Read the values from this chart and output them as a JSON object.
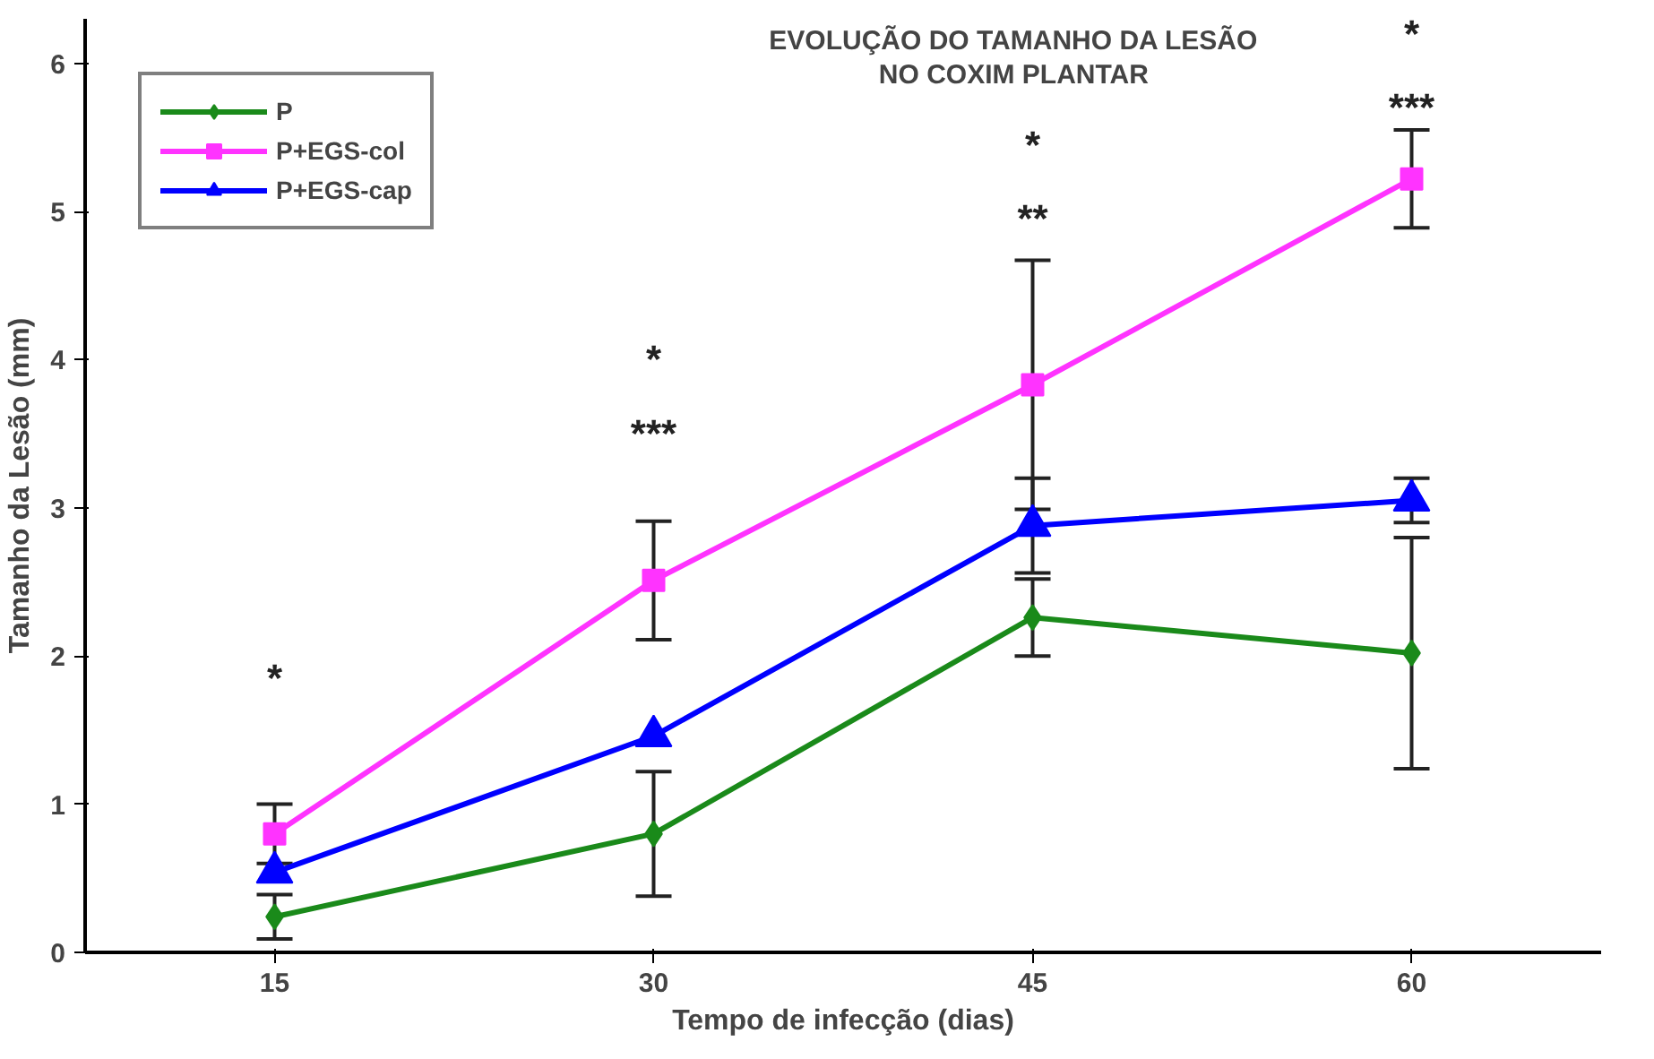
{
  "chart_data": {
    "type": "line",
    "title": "EVOLUÇÃO DO TAMANHO DA LESÃO\nNO COXIM PLANTAR",
    "xlabel": "Tempo de infecção (dias)",
    "ylabel": "Tamanho da Lesão (mm)",
    "categories": [
      "15",
      "30",
      "45",
      "60"
    ],
    "series": [
      {
        "name": "P",
        "color": "#1a8a1a",
        "marker": "diamond",
        "values": [
          0.24,
          0.8,
          2.26,
          2.02
        ],
        "errors": [
          0.15,
          0.42,
          0.26,
          0.78
        ]
      },
      {
        "name": "P+EGS-col",
        "color": "#ff33ff",
        "marker": "square",
        "values": [
          0.8,
          2.51,
          3.83,
          5.22
        ],
        "errors": [
          0.2,
          0.4,
          0.84,
          0.33
        ]
      },
      {
        "name": "P+EGS-cap",
        "color": "#0000ff",
        "marker": "triangle",
        "values": [
          0.54,
          1.46,
          2.88,
          3.05
        ],
        "errors": [
          null,
          null,
          0.32,
          0.15
        ]
      }
    ],
    "ylim": [
      0,
      6.3
    ],
    "yticks": [
      0,
      1,
      2,
      3,
      4,
      5,
      6
    ],
    "annotations": [
      "*",
      "*",
      "***",
      "*",
      "**",
      "*",
      "***"
    ],
    "grid": false,
    "legend": "top left",
    "line_style": "solid"
  }
}
